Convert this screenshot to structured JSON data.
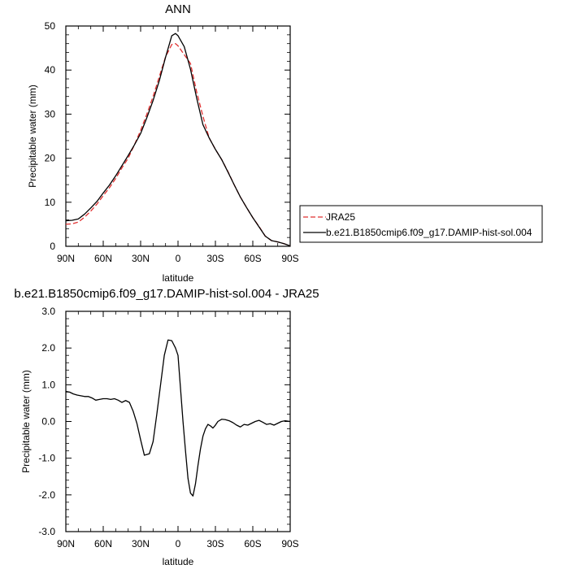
{
  "chart_data": [
    {
      "type": "line",
      "title": "ANN",
      "xlabel": "latitude",
      "ylabel": "Precipitable water (mm)",
      "xlim": [
        90,
        -90
      ],
      "ylim": [
        0,
        50
      ],
      "x_ticks": [
        90,
        60,
        30,
        0,
        -30,
        -60,
        -90
      ],
      "x_tick_labels": [
        "90N",
        "60N",
        "30N",
        "0",
        "30S",
        "60S",
        "90S"
      ],
      "y_ticks": [
        0,
        10,
        20,
        30,
        40,
        50
      ],
      "y_tick_labels": [
        "0",
        "10",
        "20",
        "30",
        "40",
        "50"
      ],
      "grid": false,
      "legend_position": "right",
      "series": [
        {
          "name": "JRA25",
          "color": "#e03030",
          "dash": "dashed",
          "x": [
            90,
            85,
            80,
            75,
            70,
            65,
            60,
            55,
            50,
            45,
            40,
            35,
            30,
            25,
            20,
            15,
            10,
            5,
            2,
            0,
            -5,
            -10,
            -15,
            -20,
            -25,
            -30,
            -35,
            -40,
            -45,
            -50,
            -55,
            -60,
            -65,
            -70,
            -75,
            -80,
            -85,
            -90
          ],
          "y": [
            5.0,
            5.1,
            5.5,
            6.6,
            8.0,
            9.6,
            11.5,
            13.3,
            15.4,
            17.8,
            20.0,
            23.0,
            26.3,
            30.0,
            34.0,
            38.5,
            43.0,
            45.8,
            46.0,
            45.5,
            43.5,
            41.5,
            35.0,
            29.5,
            24.6,
            22.0,
            19.7,
            17.0,
            14.0,
            11.2,
            8.8,
            6.5,
            4.5,
            2.3,
            1.3,
            1.0,
            0.6,
            0.1
          ]
        },
        {
          "name": "b.e21.B1850cmip6.f09_g17.DAMIP-hist-sol.004",
          "color": "#000000",
          "dash": "solid",
          "x": [
            90,
            85,
            80,
            75,
            70,
            65,
            60,
            55,
            50,
            45,
            40,
            35,
            30,
            25,
            20,
            15,
            10,
            5,
            2,
            0,
            -5,
            -10,
            -15,
            -20,
            -25,
            -30,
            -35,
            -40,
            -45,
            -50,
            -55,
            -60,
            -65,
            -70,
            -75,
            -80,
            -85,
            -90
          ],
          "y": [
            5.8,
            5.9,
            6.2,
            7.3,
            8.7,
            10.2,
            12.1,
            13.9,
            16.0,
            18.3,
            20.6,
            23.0,
            25.6,
            29.2,
            33.1,
            37.6,
            42.9,
            47.8,
            48.3,
            47.8,
            45.3,
            40.2,
            33.6,
            27.6,
            24.6,
            22.0,
            19.7,
            16.9,
            14.0,
            11.2,
            8.8,
            6.5,
            4.4,
            2.3,
            1.3,
            1.0,
            0.6,
            0.1
          ]
        }
      ]
    },
    {
      "type": "line",
      "title": "b.e21.B1850cmip6.f09_g17.DAMIP-hist-sol.004 - JRA25",
      "xlabel": "latitude",
      "ylabel": "Precipitable water (mm)",
      "xlim": [
        90,
        -90
      ],
      "ylim": [
        -3.0,
        3.0
      ],
      "x_ticks": [
        90,
        60,
        30,
        0,
        -30,
        -60,
        -90
      ],
      "x_tick_labels": [
        "90N",
        "60N",
        "30N",
        "0",
        "30S",
        "60S",
        "90S"
      ],
      "y_ticks": [
        -3.0,
        -2.0,
        -1.0,
        0.0,
        1.0,
        2.0,
        3.0
      ],
      "y_tick_labels": [
        "-3.0",
        "-2.0",
        "-1.0",
        "0.0",
        "1.0",
        "2.0",
        "3.0"
      ],
      "grid": false,
      "series": [
        {
          "color": "#000000",
          "dash": "solid",
          "x": [
            90,
            87,
            84,
            81,
            78,
            75,
            72,
            69,
            66,
            63,
            60,
            57,
            54,
            51,
            48,
            45,
            42,
            39,
            36,
            33,
            30,
            27,
            25,
            23,
            20,
            17,
            14,
            11,
            8,
            5,
            2,
            0,
            -2,
            -4,
            -6,
            -8,
            -10,
            -12,
            -14,
            -16,
            -18,
            -20,
            -22,
            -24,
            -26,
            -28,
            -30,
            -32,
            -35,
            -38,
            -41,
            -44,
            -47,
            -50,
            -53,
            -56,
            -59,
            -62,
            -65,
            -68,
            -71,
            -74,
            -77,
            -80,
            -83,
            -86,
            -90
          ],
          "y": [
            0.82,
            0.8,
            0.75,
            0.72,
            0.7,
            0.68,
            0.68,
            0.64,
            0.58,
            0.6,
            0.62,
            0.62,
            0.6,
            0.62,
            0.58,
            0.52,
            0.57,
            0.52,
            0.28,
            -0.05,
            -0.5,
            -0.92,
            -0.9,
            -0.88,
            -0.55,
            0.2,
            1.0,
            1.8,
            2.22,
            2.2,
            2.0,
            1.8,
            0.9,
            0.0,
            -0.8,
            -1.55,
            -1.95,
            -2.03,
            -1.7,
            -1.2,
            -0.75,
            -0.4,
            -0.2,
            -0.08,
            -0.12,
            -0.18,
            -0.1,
            0.0,
            0.06,
            0.05,
            0.02,
            -0.03,
            -0.1,
            -0.15,
            -0.08,
            -0.1,
            -0.05,
            0.0,
            0.03,
            -0.02,
            -0.08,
            -0.06,
            -0.1,
            -0.05,
            0.0,
            0.02,
            0.0
          ]
        }
      ]
    }
  ]
}
